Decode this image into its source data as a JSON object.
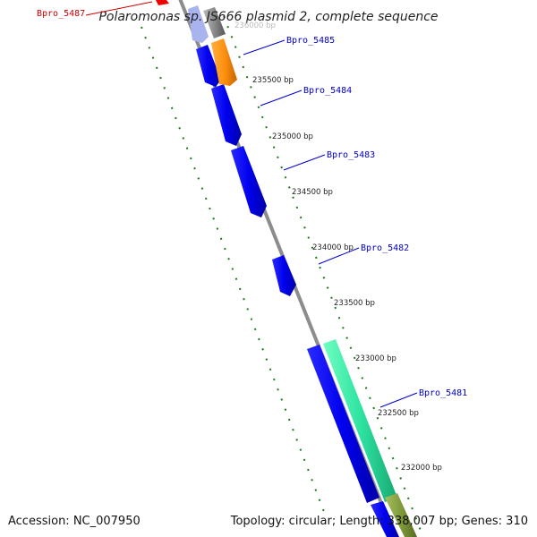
{
  "title": "Polaromonas sp. JS666 plasmid 2, complete sequence",
  "footer": {
    "accession": "Accession: NC_007950",
    "summary": "Topology: circular; Length: 338,007 bp; Genes: 310"
  },
  "colors": {
    "backbone": "#8c8c8c",
    "tick": "#1a7a1a",
    "cds": "#0000ee",
    "label_link": "#0000cc",
    "red_label": "#cc0000"
  },
  "ticks": [
    {
      "label": "236000 bp"
    },
    {
      "label": "235500 bp"
    },
    {
      "label": "235000 bp"
    },
    {
      "label": "234500 bp"
    },
    {
      "label": "234000 bp"
    },
    {
      "label": "233500 bp"
    },
    {
      "label": "233000 bp"
    },
    {
      "label": "232500 bp"
    },
    {
      "label": "232000 bp"
    }
  ],
  "gene_labels": [
    {
      "name": "Bpro_5487",
      "color": "#cc0000"
    },
    {
      "name": "Bpro_5485",
      "color": "#0000cc"
    },
    {
      "name": "Bpro_5484",
      "color": "#0000cc"
    },
    {
      "name": "Bpro_5483",
      "color": "#0000cc"
    },
    {
      "name": "Bpro_5482",
      "color": "#0000cc"
    },
    {
      "name": "Bpro_5481",
      "color": "#0000cc"
    }
  ]
}
